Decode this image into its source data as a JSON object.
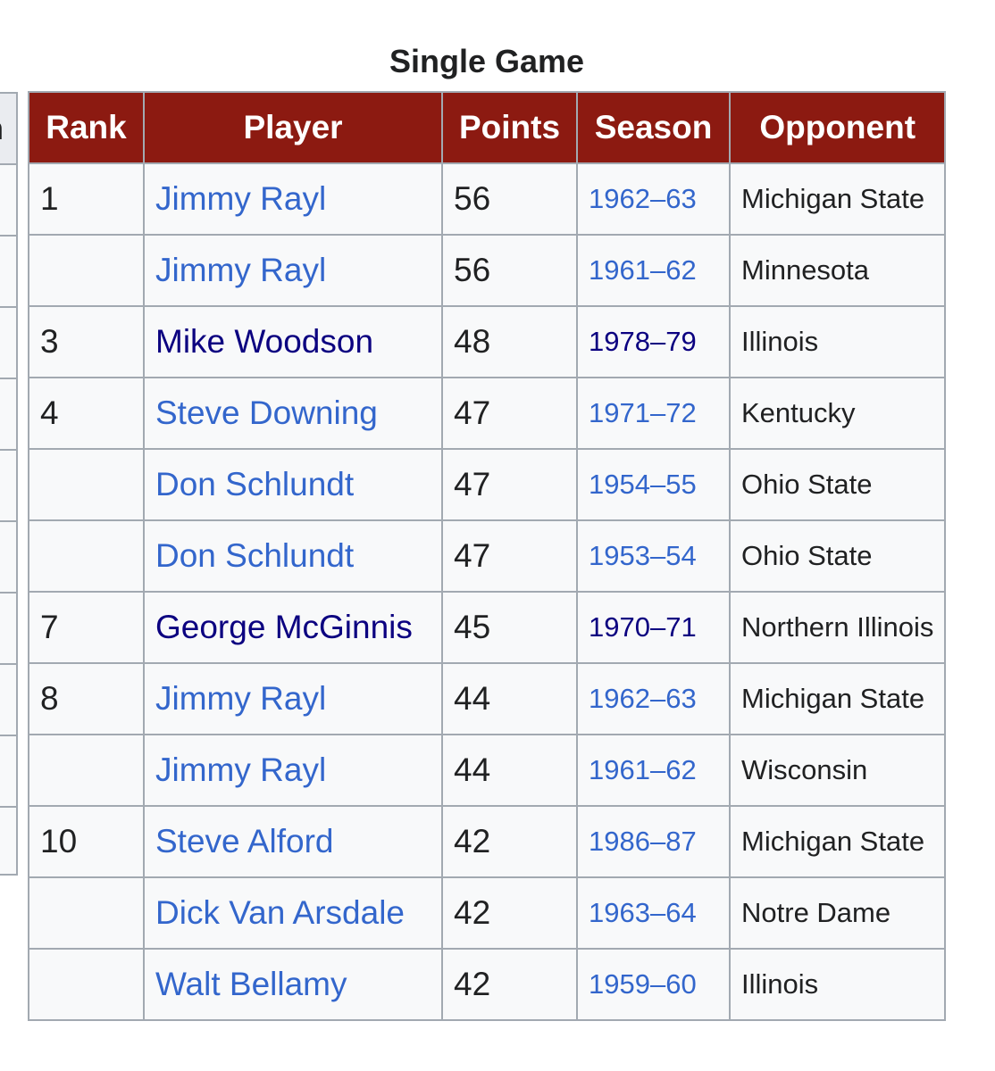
{
  "caption": "Single Game",
  "prev_header_fragment": "n",
  "headers": {
    "rank": "Rank",
    "player": "Player",
    "points": "Points",
    "season": "Season",
    "opponent": "Opponent"
  },
  "rows": [
    {
      "rank": "1",
      "player": "Jimmy Rayl",
      "points": "56",
      "season": "1962–63",
      "opponent": "Michigan State",
      "visited": false
    },
    {
      "rank": "",
      "player": "Jimmy Rayl",
      "points": "56",
      "season": "1961–62",
      "opponent": "Minnesota",
      "visited": false
    },
    {
      "rank": "3",
      "player": "Mike Woodson",
      "points": "48",
      "season": "1978–79",
      "opponent": "Illinois",
      "visited": true
    },
    {
      "rank": "4",
      "player": "Steve Downing",
      "points": "47",
      "season": "1971–72",
      "opponent": "Kentucky",
      "visited": false
    },
    {
      "rank": "",
      "player": "Don Schlundt",
      "points": "47",
      "season": "1954–55",
      "opponent": "Ohio State",
      "visited": false
    },
    {
      "rank": "",
      "player": "Don Schlundt",
      "points": "47",
      "season": "1953–54",
      "opponent": "Ohio State",
      "visited": false
    },
    {
      "rank": "7",
      "player": "George McGinnis",
      "points": "45",
      "season": "1970–71",
      "opponent": "Northern Illinois",
      "visited": true
    },
    {
      "rank": "8",
      "player": "Jimmy Rayl",
      "points": "44",
      "season": "1962–63",
      "opponent": "Michigan State",
      "visited": false
    },
    {
      "rank": "",
      "player": "Jimmy Rayl",
      "points": "44",
      "season": "1961–62",
      "opponent": "Wisconsin",
      "visited": false
    },
    {
      "rank": "10",
      "player": "Steve Alford",
      "points": "42",
      "season": "1986–87",
      "opponent": "Michigan State",
      "visited": false
    },
    {
      "rank": "",
      "player": "Dick Van Arsdale",
      "points": "42",
      "season": "1963–64",
      "opponent": "Notre Dame",
      "visited": false
    },
    {
      "rank": "",
      "player": "Walt Bellamy",
      "points": "42",
      "season": "1959–60",
      "opponent": "Illinois",
      "visited": false
    }
  ],
  "colors": {
    "header_bg": "#8c1a11",
    "link": "#3366cc",
    "visited_link": "#0b0080",
    "border": "#a2a9b1",
    "cell_bg": "#f8f9fa"
  }
}
